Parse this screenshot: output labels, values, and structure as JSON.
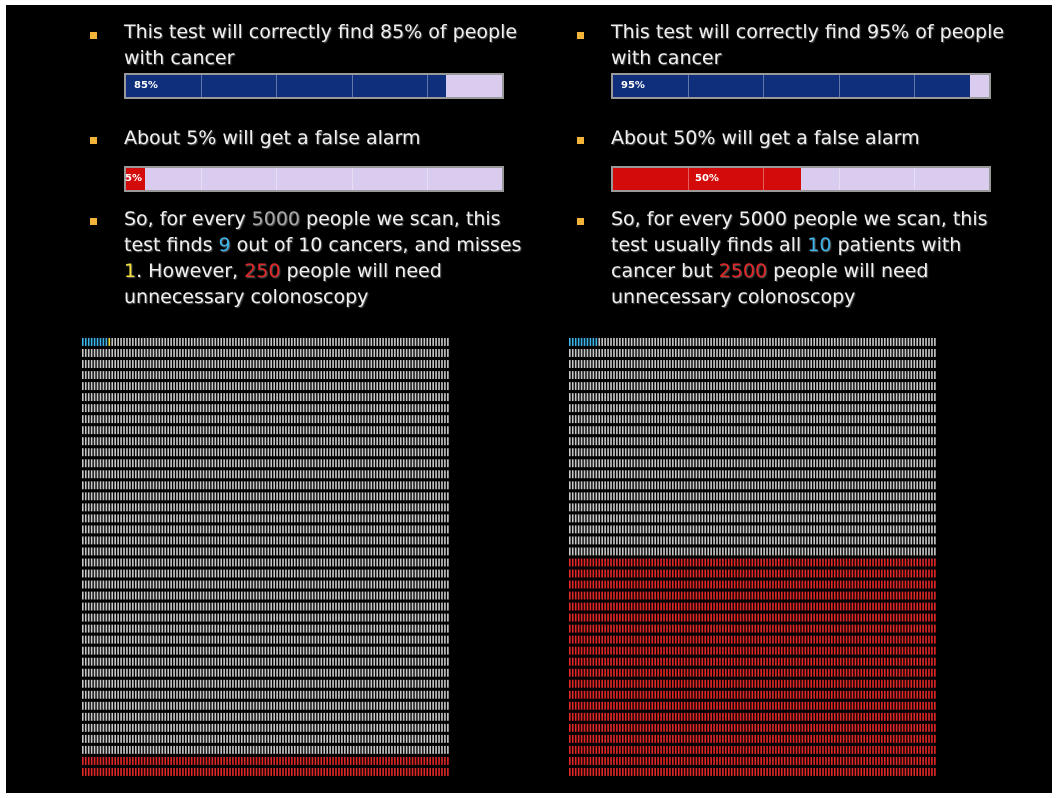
{
  "left": {
    "bullet1": "This test will correctly find 85% of people with cancer",
    "bar1": {
      "label": "85%",
      "value": 0.85
    },
    "bullet2": "About 5% will get a false alarm",
    "bar2": {
      "label": "5%",
      "value": 0.05
    },
    "bullet3_parts": [
      "So, for every ",
      "5000",
      " people we scan, this test finds ",
      "9",
      " out of 10 cancers, and misses ",
      "1",
      ". However, ",
      "250",
      " people will need unnecessary colonoscopy"
    ],
    "grid": {
      "total": 5000,
      "columns": 125,
      "detected": 9,
      "missed": 1,
      "false_alarms": 250
    }
  },
  "right": {
    "bullet1": "This test will correctly find 95% of people with cancer",
    "bar1": {
      "label": "95%",
      "value": 0.95
    },
    "bullet2": "About 50% will get a false alarm",
    "bar2": {
      "label": "50%",
      "value": 0.5
    },
    "bullet3_parts": [
      "So, for every 5000 people we scan, this test usually finds all ",
      "10",
      " patients with cancer but ",
      "2500",
      " people will need unnecessary colonoscopy"
    ],
    "grid": {
      "total": 5000,
      "columns": 125,
      "detected": 10,
      "missed": 0,
      "false_alarms": 2500
    }
  },
  "colors": {
    "background": "#000000",
    "bullet": "#f2b53a",
    "detected": "#3bb5ec",
    "missed": "#f5e13b",
    "false_alarm": "#e12727",
    "healthy": "#c8c8c8",
    "bar_blue": "#0f2e7c",
    "bar_red": "#d40b0b",
    "bar_track": "#d9ccef"
  }
}
